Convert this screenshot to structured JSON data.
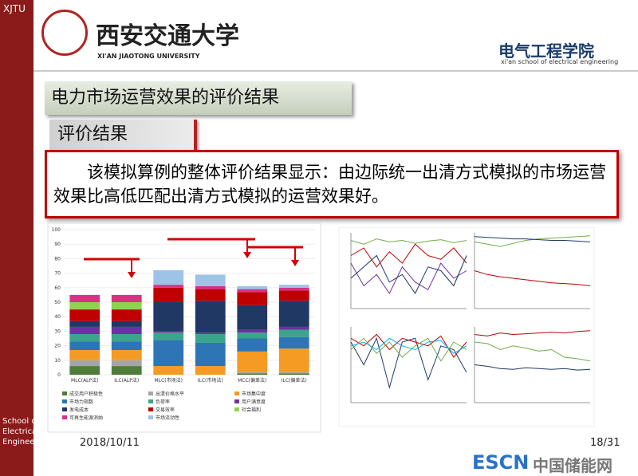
{
  "header": {
    "corner": "XJTU",
    "university_cn": "西安交通大学",
    "university_en": "XI'AN JIAOTONG UNIVERSITY",
    "school_cn": "电气工程学院",
    "school_en": "xi'an school of electrical engineering"
  },
  "slide": {
    "title": "电力市场运营效果的评价结果",
    "subtitle": "评价结果",
    "text": "该模拟算例的整体评价结果显示：由边际统一出清方式模拟的市场运营效果比高低匹配出清方式模拟的运营效果好。"
  },
  "chart_data": [
    {
      "type": "stacked_bar",
      "categories": [
        "MLC(ALP法)",
        "ILC(ALP法)",
        "MLC(市场法)",
        "ILC(市场法)",
        "MCC(偏差法)",
        "ILC(偏差法)"
      ],
      "ylim": [
        0,
        100
      ],
      "yticks": [
        0,
        10,
        20,
        30,
        40,
        50,
        60,
        70,
        80,
        90,
        100
      ],
      "series": [
        {
          "name": "成交用户积极性",
          "color": "#4e7d3a",
          "values": [
            6,
            6,
            0,
            0,
            1,
            1
          ]
        },
        {
          "name": "出清价格水平",
          "color": "#a5a5a5",
          "values": [
            4,
            4,
            0,
            0,
            1,
            1
          ]
        },
        {
          "name": "市场集中度",
          "color": "#f59a23",
          "values": [
            7,
            7,
            6,
            6,
            14,
            16
          ]
        },
        {
          "name": "市场力指数",
          "color": "#2e75b6",
          "values": [
            6,
            6,
            18,
            16,
            9,
            8
          ]
        },
        {
          "name": "负荷率",
          "color": "#3aa58a",
          "values": [
            5,
            5,
            5,
            6,
            4,
            5
          ]
        },
        {
          "name": "用户满意度",
          "color": "#7030a0",
          "values": [
            5,
            5,
            1,
            1,
            2,
            2
          ]
        },
        {
          "name": "发电成本",
          "color": "#203864",
          "values": [
            4,
            4,
            20,
            22,
            17,
            18
          ]
        },
        {
          "name": "交易效率",
          "color": "#c00000",
          "values": [
            8,
            8,
            10,
            8,
            9,
            7
          ]
        },
        {
          "name": "社会福利",
          "color": "#92d050",
          "values": [
            5,
            5,
            0,
            0,
            0,
            0
          ]
        },
        {
          "name": "可再生能源消纳",
          "color": "#d63384",
          "values": [
            5,
            5,
            2,
            2,
            2,
            2
          ]
        },
        {
          "name": "市场流动性",
          "color": "#9dc3e6",
          "values": [
            0,
            0,
            10,
            8,
            2,
            2
          ]
        }
      ]
    },
    {
      "type": "line",
      "ylim": [
        0,
        100
      ],
      "series": [
        {
          "color": "#7030a0",
          "values": [
            60,
            30,
            45,
            20,
            55,
            35,
            25,
            60,
            40,
            50
          ]
        },
        {
          "color": "#c00000",
          "values": [
            70,
            80,
            55,
            75,
            60,
            85,
            70,
            65,
            80,
            60
          ]
        },
        {
          "color": "#203864",
          "values": [
            40,
            55,
            70,
            35,
            45,
            20,
            55,
            50,
            30,
            70
          ]
        },
        {
          "color": "#70ad47",
          "values": [
            90,
            85,
            92,
            88,
            90,
            86,
            89,
            91,
            87,
            90
          ]
        }
      ]
    },
    {
      "type": "line",
      "ylim": [
        0,
        100
      ],
      "series": [
        {
          "color": "#c00000",
          "values": [
            50,
            45,
            42,
            40,
            38,
            36,
            34,
            33,
            32,
            30
          ]
        },
        {
          "color": "#70ad47",
          "values": [
            88,
            85,
            82,
            86,
            90,
            92,
            93,
            94,
            95,
            96
          ]
        },
        {
          "color": "#203864",
          "values": [
            95,
            94,
            93,
            92,
            92,
            91,
            90,
            90,
            89,
            88
          ]
        }
      ]
    },
    {
      "type": "line",
      "ylim": [
        0,
        100
      ],
      "series": [
        {
          "color": "#203864",
          "values": [
            80,
            50,
            85,
            20,
            80,
            85,
            30,
            75,
            70,
            40
          ]
        },
        {
          "color": "#c00000",
          "values": [
            85,
            75,
            90,
            70,
            85,
            80,
            75,
            88,
            60,
            80
          ]
        },
        {
          "color": "#70ad47",
          "values": [
            70,
            85,
            65,
            80,
            60,
            75,
            85,
            55,
            80,
            70
          ]
        },
        {
          "color": "#00b0f0",
          "values": [
            75,
            80,
            70,
            85,
            75,
            70,
            80,
            82,
            65,
            75
          ]
        }
      ]
    },
    {
      "type": "line",
      "ylim": [
        0,
        100
      ],
      "series": [
        {
          "color": "#c00000",
          "values": [
            90,
            88,
            92,
            90,
            91,
            92,
            93,
            92,
            94,
            95
          ]
        },
        {
          "color": "#70ad47",
          "values": [
            80,
            78,
            70,
            75,
            72,
            68,
            70,
            60,
            58,
            55
          ]
        },
        {
          "color": "#203864",
          "values": [
            50,
            48,
            45,
            44,
            46,
            45,
            44,
            45,
            43,
            44
          ]
        }
      ]
    }
  ],
  "footer": {
    "sidebar": "School of Electrical Engineering",
    "date": "2018/10/11",
    "page": "18/31",
    "watermark_en": "ESCN",
    "watermark_cn": "中国储能网"
  }
}
